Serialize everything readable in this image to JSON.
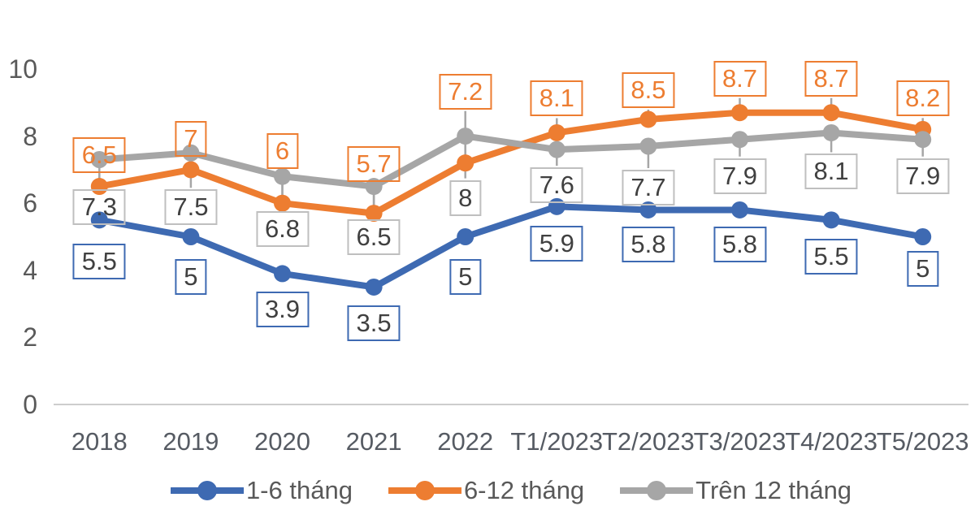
{
  "chart_data": {
    "type": "line",
    "title": "",
    "categories": [
      "2018",
      "2019",
      "2020",
      "2021",
      "2022",
      "T1/2023",
      "T2/2023",
      "T3/2023",
      "T4/2023",
      "T5/2023"
    ],
    "series": [
      {
        "name": "1-6 tháng",
        "color": "#3E6AB2",
        "marker": "circle",
        "values": [
          5.5,
          5,
          3.9,
          3.5,
          5,
          5.9,
          5.8,
          5.8,
          5.5,
          5
        ],
        "label_border": "#3E6AB2",
        "label_text_color": "#404040"
      },
      {
        "name": "6-12 tháng",
        "color": "#ED7D31",
        "marker": "circle",
        "values": [
          6.5,
          7,
          6,
          5.7,
          7.2,
          8.1,
          8.5,
          8.7,
          8.7,
          8.2
        ],
        "label_border": "#ED7D31",
        "label_text_color": "#ED7D31"
      },
      {
        "name": "Trên 12 tháng",
        "color": "#A6A6A6",
        "marker": "circle",
        "values": [
          7.3,
          7.5,
          6.8,
          6.5,
          8,
          7.6,
          7.7,
          7.9,
          8.1,
          7.9
        ],
        "label_border": "#BFBFBF",
        "label_text_color": "#404040"
      }
    ],
    "y_ticks": [
      0,
      2,
      4,
      6,
      8,
      10
    ],
    "ylim": [
      0,
      10
    ],
    "grid": false,
    "data_labels": "boxed, transparent fill, leader lines on 6-12 tháng and Trên 12 tháng series",
    "legend_position": "bottom-center",
    "colors": {
      "axis_line": "#CDCDCD",
      "axis_text": "#595959",
      "leader_line": "#A6A6A6"
    }
  }
}
